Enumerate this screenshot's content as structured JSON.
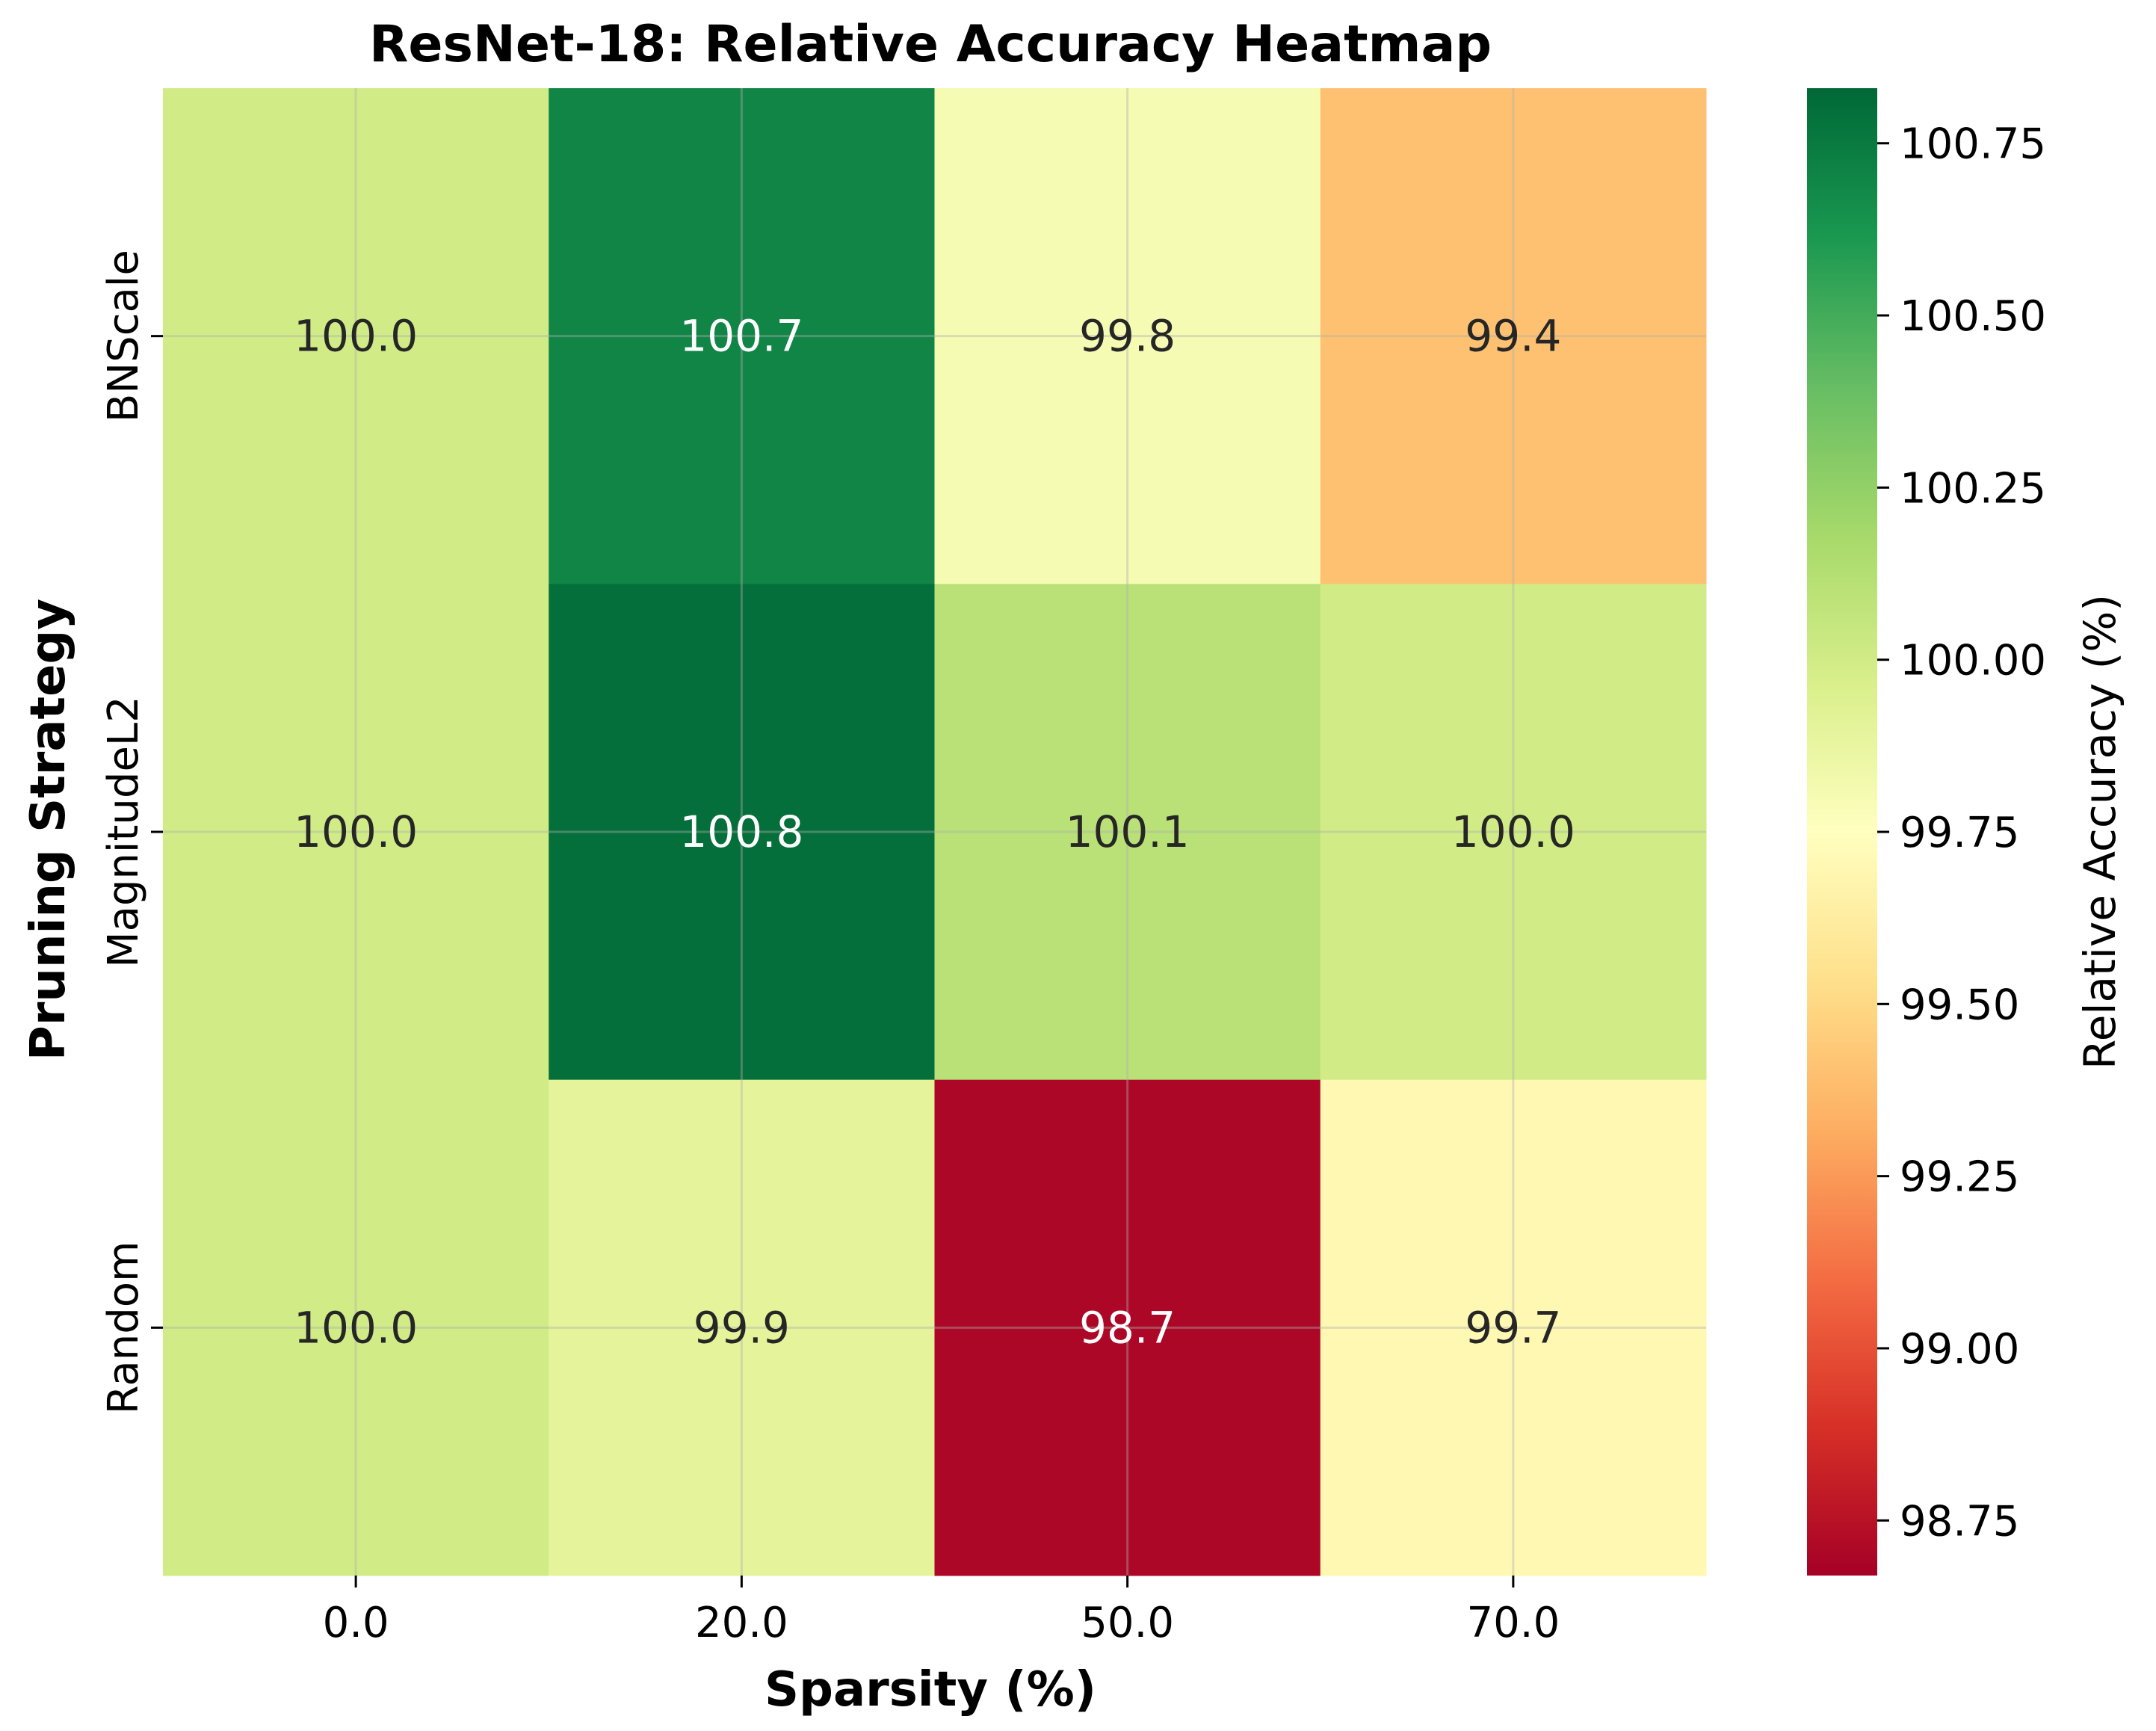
{
  "chart_data": {
    "type": "heatmap",
    "title": "ResNet-18: Relative Accuracy Heatmap",
    "xlabel": "Sparsity (%)",
    "ylabel": "Pruning Strategy",
    "x_categories": [
      "0.0",
      "20.0",
      "50.0",
      "70.0"
    ],
    "y_categories": [
      "BNScale",
      "MagnitudeL2",
      "Random"
    ],
    "values": [
      [
        100.0,
        100.7,
        99.8,
        99.4
      ],
      [
        100.0,
        100.8,
        100.1,
        100.0
      ],
      [
        100.0,
        99.9,
        98.7,
        99.7
      ]
    ],
    "cell_labels": [
      [
        "100.0",
        "100.7",
        "99.8",
        "99.4"
      ],
      [
        "100.0",
        "100.8",
        "100.1",
        "100.0"
      ],
      [
        "100.0",
        "99.9",
        "98.7",
        "99.7"
      ]
    ],
    "colormap": "RdYlGn",
    "colorbar": {
      "label": "Relative Accuracy (%)",
      "vmin": 98.67,
      "vmax": 100.83,
      "ticks": [
        "98.75",
        "99.00",
        "99.25",
        "99.50",
        "99.75",
        "100.00",
        "100.25",
        "100.50",
        "100.75"
      ]
    },
    "grid": true
  }
}
